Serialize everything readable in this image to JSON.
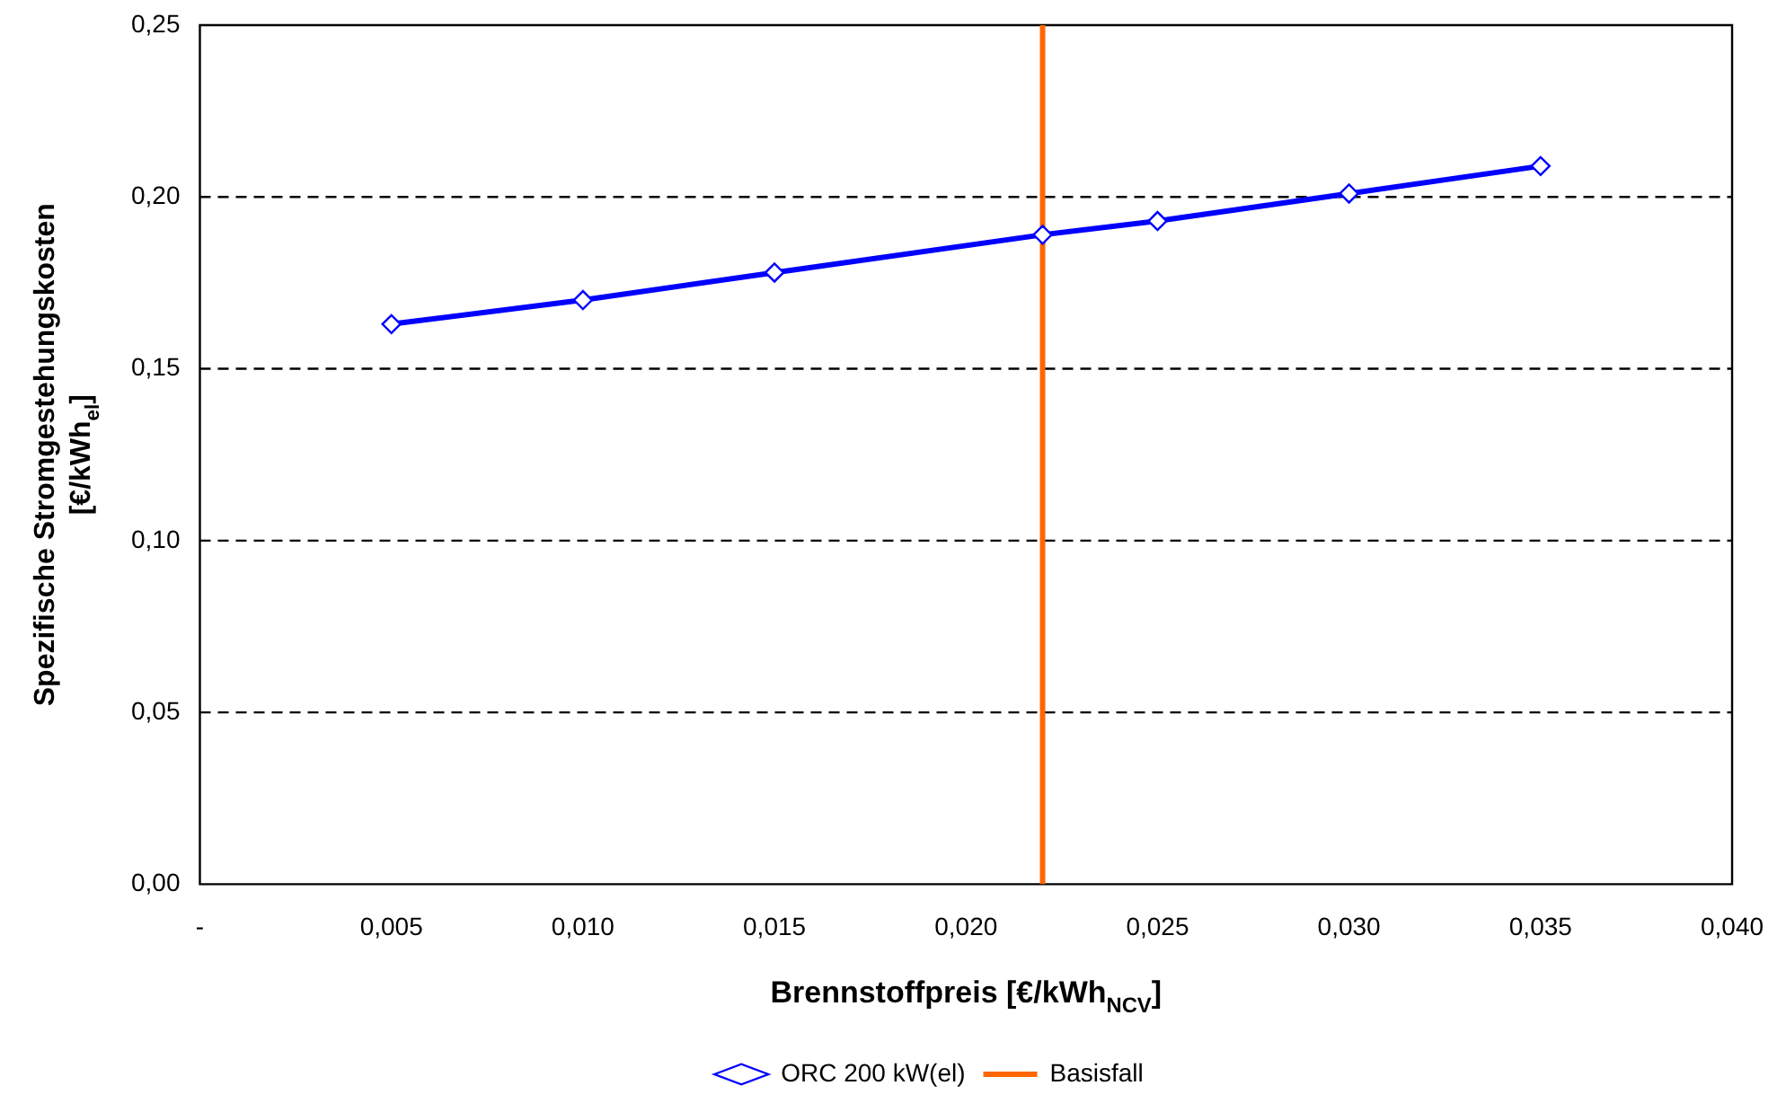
{
  "chart_data": {
    "type": "line",
    "xlabel": "Brennstoffpreis [€/kWh$_{NCV}$]",
    "ylabel": "Spezifische Stromgestehungskosten\n[€/kWh$_{el}$]",
    "x": [
      0.005,
      0.01,
      0.015,
      0.022,
      0.025,
      0.03,
      0.035
    ],
    "series": [
      {
        "name": "ORC 200 kW(el)",
        "color": "#0000ff",
        "values": [
          0.163,
          0.17,
          0.178,
          0.189,
          0.193,
          0.201,
          0.209
        ]
      }
    ],
    "xlim": [
      0,
      0.04
    ],
    "xticks": [
      {
        "value": 0,
        "label": "-"
      },
      {
        "value": 0.005,
        "label": "0,005"
      },
      {
        "value": 0.01,
        "label": "0,010"
      },
      {
        "value": 0.015,
        "label": "0,015"
      },
      {
        "value": 0.02,
        "label": "0,020"
      },
      {
        "value": 0.025,
        "label": "0,025"
      },
      {
        "value": 0.03,
        "label": "0,030"
      },
      {
        "value": 0.035,
        "label": "0,035"
      },
      {
        "value": 0.04,
        "label": "0,040"
      }
    ],
    "ylim": [
      0,
      0.25
    ],
    "yticks": [
      {
        "value": 0,
        "label": "0,00"
      },
      {
        "value": 0.05,
        "label": "0,05"
      },
      {
        "value": 0.1,
        "label": "0,10"
      },
      {
        "value": 0.15,
        "label": "0,15"
      },
      {
        "value": 0.2,
        "label": "0,20"
      },
      {
        "value": 0.25,
        "label": "0,25"
      }
    ],
    "ref_lines": [
      {
        "axis": "x",
        "value": 0.022,
        "label": "Basisfall",
        "color": "#ff6600"
      }
    ],
    "grid": "y",
    "legend": "bottom",
    "marker": "diamond",
    "line_style": "solid"
  }
}
